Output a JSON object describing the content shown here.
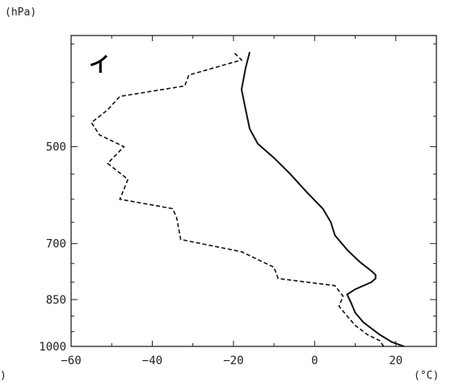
{
  "chart_data": {
    "type": "line",
    "title": "",
    "annotation": "イ",
    "y_unit_label": "(hPa)",
    "x_unit_label": "(°C)",
    "left_fragment": ")",
    "x_ticks": [
      "−60",
      "−40",
      "−20",
      "0",
      "20"
    ],
    "x_tick_values": [
      -60,
      -40,
      -20,
      0,
      20
    ],
    "y_ticks": [
      "500",
      "700",
      "850",
      "1000"
    ],
    "y_tick_pixels_note": "",
    "xlim": [
      -60,
      30
    ],
    "pressure_levels_hPa": [
      1000,
      850,
      700,
      500
    ],
    "grid": false,
    "series": [
      {
        "style": "solid",
        "color": "#111111",
        "points_T_C": [
          [
            22,
            1000
          ],
          [
            21,
            995
          ],
          [
            19,
            985
          ],
          [
            16,
            960
          ],
          [
            12,
            920
          ],
          [
            10,
            890
          ],
          [
            9,
            860
          ],
          [
            8,
            835
          ],
          [
            10,
            820
          ],
          [
            14,
            800
          ],
          [
            15,
            790
          ],
          [
            15,
            780
          ],
          [
            14,
            770
          ],
          [
            11,
            745
          ],
          [
            8,
            715
          ],
          [
            5,
            680
          ],
          [
            4,
            650
          ],
          [
            2,
            620
          ],
          [
            -2,
            585
          ],
          [
            -6,
            550
          ],
          [
            -10,
            520
          ],
          [
            -14,
            495
          ],
          [
            -16,
            470
          ],
          [
            -17,
            440
          ],
          [
            -18,
            410
          ],
          [
            -17,
            380
          ],
          [
            -16,
            360
          ]
        ]
      },
      {
        "style": "dashed",
        "color": "#111111",
        "points_T_C": [
          [
            17,
            1000
          ],
          [
            16,
            980
          ],
          [
            13,
            960
          ],
          [
            10,
            930
          ],
          [
            8,
            900
          ],
          [
            6,
            870
          ],
          [
            7,
            840
          ],
          [
            5,
            810
          ],
          [
            -9,
            790
          ],
          [
            -10,
            760
          ],
          [
            -18,
            720
          ],
          [
            -33,
            690
          ],
          [
            -34,
            640
          ],
          [
            -35,
            620
          ],
          [
            -48,
            600
          ],
          [
            -46,
            560
          ],
          [
            -51,
            530
          ],
          [
            -47,
            500
          ],
          [
            -53,
            480
          ],
          [
            -55,
            460
          ],
          [
            -51,
            440
          ],
          [
            -48,
            420
          ],
          [
            -32,
            405
          ],
          [
            -31,
            390
          ],
          [
            -18,
            370
          ],
          [
            -20,
            360
          ]
        ]
      }
    ]
  }
}
